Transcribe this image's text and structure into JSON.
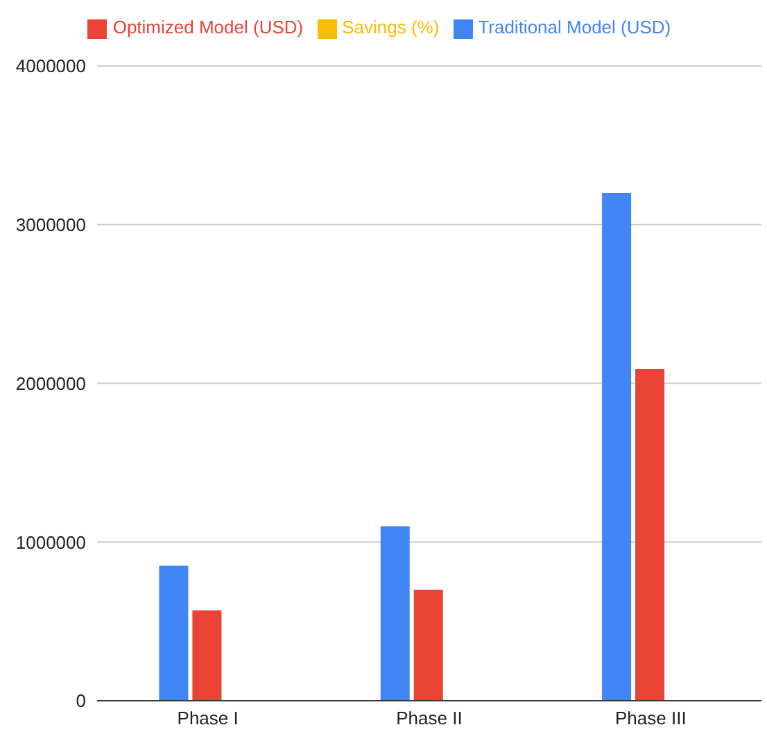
{
  "chart_data": {
    "type": "bar",
    "categories": [
      "Phase I",
      "Phase II",
      "Phase III"
    ],
    "series": [
      {
        "name": "Traditional Model (USD)",
        "color": "#4285f4",
        "values": [
          850000,
          1100000,
          3200000
        ]
      },
      {
        "name": "Optimized Model (USD)",
        "color": "#ea4335",
        "values": [
          570000,
          700000,
          2090000
        ]
      },
      {
        "name": "Savings (%)",
        "color": "#fbbc04",
        "values": [
          null,
          null,
          null
        ]
      }
    ],
    "ylim": [
      0,
      4000000
    ],
    "yticks": [
      0,
      1000000,
      2000000,
      3000000,
      4000000
    ],
    "grid": "y",
    "legend": "top"
  }
}
